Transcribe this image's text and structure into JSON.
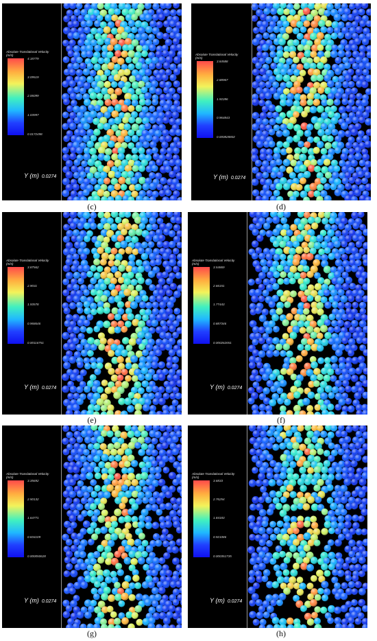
{
  "panels": [
    {
      "id": "c",
      "caption": "(c)",
      "legend_title": "Absolute Translational Velocity",
      "legend_unit": "(m/s)",
      "ticks": [
        "4.18779",
        "3.09519",
        "2.06099",
        "1.03997",
        "0.0172498"
      ],
      "y_label": "Y (m)",
      "y_value": "0.0274",
      "show_legend": true,
      "show_y": true
    },
    {
      "id": "d",
      "caption": "(d)",
      "legend_title": "Absolute Translational Velocity",
      "legend_unit": "(m/s)",
      "ticks": [
        "3.84588",
        "2.88967",
        "1.92286",
        "0.964843",
        "0.000828802"
      ],
      "y_label": "Y (m)",
      "y_value": "0.0274",
      "show_legend": true,
      "show_y": true
    },
    {
      "id": "e",
      "caption": "(e)",
      "legend_title": "Absolute Translational Velocity",
      "legend_unit": "(m/s)",
      "ticks": [
        "3.87562",
        "2.9031",
        "1.93578",
        "0.968646",
        "0.00116751"
      ],
      "y_label": "Y (m)",
      "y_value": "0.0274",
      "show_legend": true,
      "show_y": true
    },
    {
      "id": "f",
      "caption": "(f)",
      "legend_title": "Absolute Translational Velocity",
      "legend_unit": "(m/s)",
      "ticks": [
        "3.54869",
        "2.66151",
        "1.77443",
        "0.887346",
        "0.000262651"
      ],
      "y_label": "Y (m)",
      "y_value": "0.0274",
      "show_legend": true,
      "show_y": true
    },
    {
      "id": "g",
      "caption": "(g)",
      "legend_title": "Absolute Translational Velocity",
      "legend_unit": "(m/s)",
      "ticks": [
        "3.35692",
        "2.50132",
        "1.64771",
        "0.834109",
        "0.000050628"
      ],
      "y_label": "Y (m)",
      "y_value": "0.0274",
      "show_legend": true,
      "show_y": true
    },
    {
      "id": "h",
      "caption": "(h)",
      "legend_title": "Absolute Translational Velocity",
      "legend_unit": "(m/s)",
      "ticks": [
        "3.6833",
        "2.76254",
        "1.84183",
        "0.921086",
        "0.000351735"
      ],
      "y_label": "Y (m)",
      "y_value": "0.0274",
      "show_legend": true,
      "show_y": true
    }
  ]
}
